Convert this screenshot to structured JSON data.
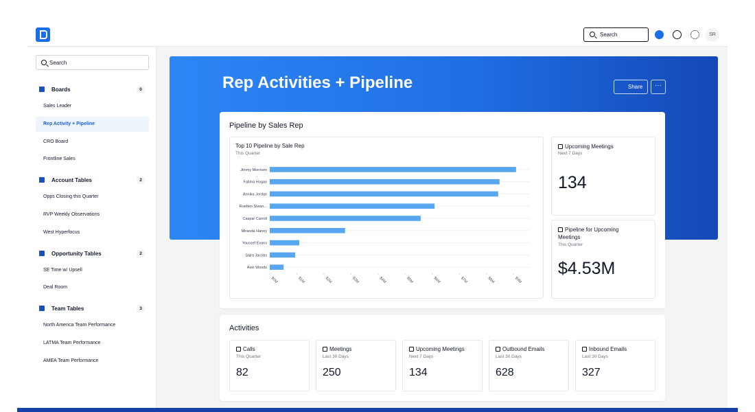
{
  "header": {
    "search_placeholder": "Search",
    "avatar": "SR"
  },
  "sidebar": {
    "search_placeholder": "Search",
    "sections": [
      {
        "title": "Boards",
        "count": 0,
        "items": [
          {
            "label": "Sales Leader"
          },
          {
            "label": "Rep Activity + Pipeline",
            "active": true
          },
          {
            "label": "CRO Board"
          },
          {
            "label": "Frontline Sales"
          }
        ]
      },
      {
        "title": "Account Tables",
        "count": 2,
        "items": [
          {
            "label": "Opps Closing this Quarter"
          },
          {
            "label": "RVP Weekly Observations"
          },
          {
            "label": "West Hyperfocus"
          }
        ]
      },
      {
        "title": "Opportunity Tables",
        "count": 2,
        "items": [
          {
            "label": "SE Time w/ Upsell"
          },
          {
            "label": "Deal Room"
          }
        ]
      },
      {
        "title": "Team Tables",
        "count": 3,
        "items": [
          {
            "label": "North America Team Performance"
          },
          {
            "label": "LATMA Team Performance"
          },
          {
            "label": "AMEA Team Performance"
          }
        ]
      }
    ]
  },
  "page": {
    "title": "Rep Activities + Pipeline",
    "share": "Share"
  },
  "pipeline": {
    "title": "Pipeline by Sales Rep",
    "stats": [
      {
        "title": "Upcoming Meetings",
        "subtitle": "Next 7 Days",
        "value": 134
      },
      {
        "title": "Pipeline for Upcoming Meetings",
        "subtitle": "This Quarter",
        "value": "$4.53M"
      }
    ]
  },
  "chart_data": {
    "type": "bar",
    "orientation": "horizontal",
    "title": "Top 10 Pipeline by Sale Rep",
    "subtitle": "This Quarter",
    "categories": [
      "Jimmy Morrison",
      "Fatima Hogan",
      "Annika Jordan",
      "Rueben Siwan...",
      "Caspar Carroll",
      "Miranda Haney",
      "Youssef Evans",
      "Saira Jacobs",
      "Axel Woods"
    ],
    "values": [
      9.09,
      8.48,
      8.43,
      6.08,
      5.57,
      2.78,
      1.09,
      0.94,
      0.51
    ],
    "color": "#58a6f0",
    "xlim": [
      0,
      9.6
    ],
    "xticks": [
      {
        "value": 0,
        "label": "$0M"
      },
      {
        "value": 1,
        "label": "$1M"
      },
      {
        "value": 2,
        "label": "$2M"
      },
      {
        "value": 3,
        "label": "$3M"
      },
      {
        "value": 4,
        "label": "$4M"
      },
      {
        "value": 5,
        "label": "$5M"
      },
      {
        "value": 6,
        "label": "$6M"
      },
      {
        "value": 7,
        "label": "$7M"
      },
      {
        "value": 8,
        "label": "$8M"
      },
      {
        "value": 9,
        "label": "$9M"
      }
    ]
  },
  "activities": {
    "title": "Activities",
    "cards": [
      {
        "title": "Calls",
        "subtitle": "This Quarter",
        "value": 82
      },
      {
        "title": "Meetings",
        "subtitle": "Last 30 Days",
        "value": 250
      },
      {
        "title": "Upcoming Meetings",
        "subtitle": "Next 7 Days",
        "value": 134
      },
      {
        "title": "Outbound Emails",
        "subtitle": "Last 30 Days",
        "value": 628
      },
      {
        "title": "Inbound Emails",
        "subtitle": "Last 30 Days",
        "value": 327
      }
    ]
  }
}
